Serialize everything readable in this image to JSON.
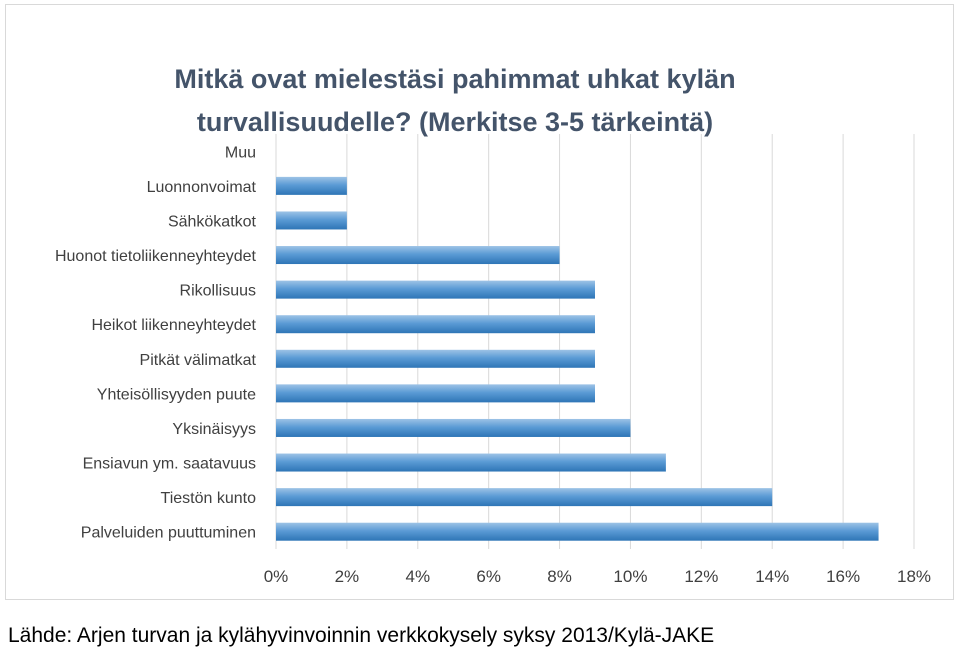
{
  "chart_data": {
    "type": "bar",
    "orientation": "horizontal",
    "title": "Mitkä ovat mielestäsi pahimmat uhkat kylän turvallisuudelle? (Merkitse 3-5 tärkeintä)",
    "xlabel": "",
    "ylabel": "",
    "categories": [
      "Muu",
      "Luonnonvoimat",
      "Sähkökatkot",
      "Huonot tietoliikenneyhteydet",
      "Rikollisuus",
      "Heikot liikenneyhteydet",
      "Pitkät välimatkat",
      "Yhteisöllisyyden puute",
      "Yksinäisyys",
      "Ensiavun ym. saatavuus",
      "Tiestön kunto",
      "Palveluiden puuttuminen"
    ],
    "values": [
      0,
      2,
      2,
      8,
      9,
      9,
      9,
      9,
      10,
      11,
      14,
      17
    ],
    "value_unit": "%",
    "xlim": [
      0,
      18
    ],
    "x_ticks": [
      0,
      2,
      4,
      6,
      8,
      10,
      12,
      14,
      16,
      18
    ],
    "x_tick_labels": [
      "0%",
      "2%",
      "4%",
      "6%",
      "8%",
      "10%",
      "12%",
      "14%",
      "16%",
      "18%"
    ],
    "grid": "vertical",
    "legend": "none",
    "colors": {
      "bar": "#5b9bd5",
      "bar_light": "#9dc3e6",
      "bar_dark": "#2e75b6",
      "grid": "#d9d9d9",
      "axis_text": "#404040",
      "title": "#44546a"
    }
  },
  "source_note": "Lähde: Arjen turvan ja kylähyvinvoinnin verkkokysely syksy 2013/Kylä-JAKE"
}
